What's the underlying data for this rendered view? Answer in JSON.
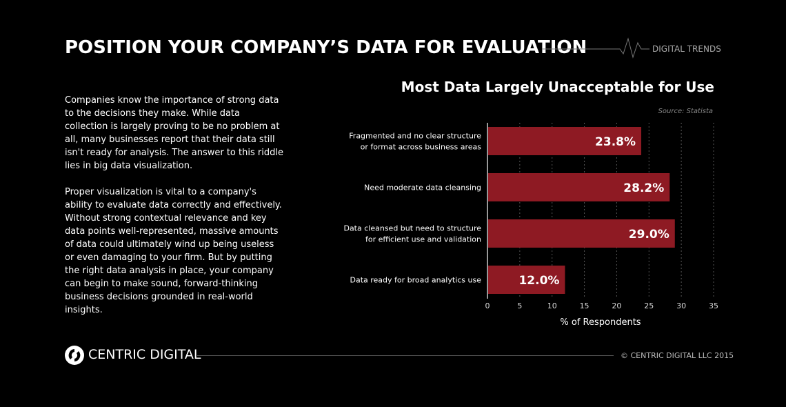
{
  "header": {
    "title": "POSITION YOUR COMPANY’S DATA FOR EVALUATION",
    "brand": "DIGITAL TRENDS"
  },
  "body": {
    "paragraphs": [
      "Companies know the importance of strong data to the decisions they make. While data collection is largely proving to be no problem at all, many businesses report that their data still isn't ready for analysis. The answer to this riddle lies in big data visualization.",
      "Proper visualization is vital to a company's ability to evaluate data correctly and effectively. Without strong contextual relevance and key data points well-represented, massive amounts of data could ultimately wind up being useless or even damaging to your firm. But by putting the right data analysis in place, your company can begin to make sound, forward-thinking business decisions grounded in real-world insights."
    ]
  },
  "footer": {
    "logo": "CENTRIC DIGITAL",
    "copyright": "© CENTRIC DIGITAL LLC 2015"
  },
  "chart_data": {
    "type": "bar",
    "orientation": "horizontal",
    "title": "Most Data Largely Unacceptable for Use",
    "source": "Source: Statista",
    "categories": [
      [
        "Fragmented and no clear structure",
        "or format across business areas"
      ],
      [
        "Need moderate data cleansing"
      ],
      [
        "Data cleansed but need to structure",
        "for efficient use and validation"
      ],
      [
        "Data ready for broad analytics use"
      ]
    ],
    "values": [
      23.8,
      28.2,
      29.0,
      12.0
    ],
    "value_labels": [
      "23.8%",
      "28.2%",
      "29.0%",
      "12.0%"
    ],
    "xlabel": "% of Respondents",
    "xlim": [
      0,
      35
    ],
    "xticks": [
      0,
      5,
      10,
      15,
      20,
      25,
      30,
      35
    ],
    "grid": "vertical dotted",
    "bar_color": "#8e1a23"
  }
}
